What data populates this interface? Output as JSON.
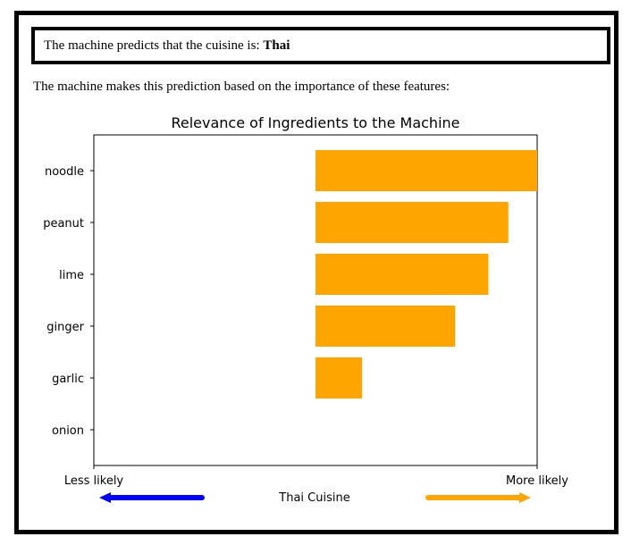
{
  "prediction": {
    "prefix": "The machine predicts that the cuisine is: ",
    "cuisine": "Thai"
  },
  "explanation": "The machine makes this prediction based on the importance of these features:",
  "chart_data": {
    "type": "bar",
    "orientation": "horizontal",
    "title": "Relevance of Ingredients to the Machine",
    "categories": [
      "noodle",
      "peanut",
      "lime",
      "ginger",
      "garlic",
      "onion"
    ],
    "values": [
      1.0,
      0.87,
      0.78,
      0.63,
      0.21,
      0.0
    ],
    "xlim": [
      -1,
      1
    ],
    "bar_color": "#FFA500",
    "xaxis_left_label": "Less likely",
    "xaxis_right_label": "More likely",
    "grid": false
  },
  "legend": {
    "center_label": "Thai Cuisine",
    "left_arrow_color": "#0000FF",
    "right_arrow_color": "#FFA500"
  }
}
